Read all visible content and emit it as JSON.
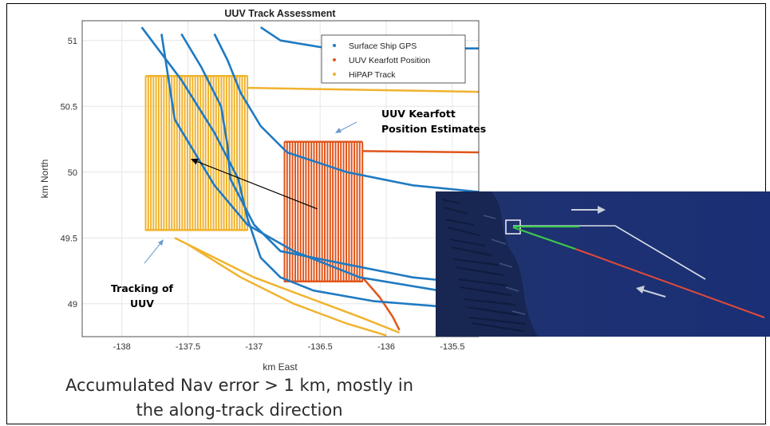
{
  "chart_data": {
    "type": "line",
    "title": "UUV Track Assessment",
    "xlabel": "km East",
    "ylabel": "km North",
    "xlim": [
      -138.3,
      -135.3
    ],
    "ylim": [
      48.75,
      51.15
    ],
    "xticks": [
      -138,
      -137.5,
      -137,
      -136.5,
      -136,
      -135.5
    ],
    "yticks": [
      49,
      49.5,
      50,
      50.5,
      51
    ],
    "grid": true,
    "legend_position": "top-right",
    "series": [
      {
        "name": "Surface Ship GPS",
        "color": "#1f7ac2",
        "paths": [
          [
            [
              -137.85,
              51.1
            ],
            [
              -137.55,
              50.7
            ],
            [
              -137.3,
              50.3
            ],
            [
              -137.12,
              49.95
            ],
            [
              -137.05,
              49.65
            ],
            [
              -136.95,
              49.35
            ],
            [
              -136.8,
              49.2
            ],
            [
              -136.55,
              49.1
            ],
            [
              -136.1,
              49.02
            ],
            [
              -135.6,
              48.98
            ],
            [
              -135.3,
              48.96
            ]
          ],
          [
            [
              -137.3,
              51.05
            ],
            [
              -137.2,
              50.85
            ],
            [
              -137.1,
              50.6
            ],
            [
              -136.95,
              50.35
            ],
            [
              -136.75,
              50.15
            ],
            [
              -136.3,
              50.0
            ],
            [
              -135.8,
              49.9
            ],
            [
              -135.3,
              49.85
            ]
          ],
          [
            [
              -137.55,
              51.05
            ],
            [
              -137.4,
              50.8
            ],
            [
              -137.25,
              50.5
            ],
            [
              -137.2,
              50.2
            ],
            [
              -137.18,
              49.95
            ],
            [
              -137.0,
              49.6
            ],
            [
              -136.8,
              49.4
            ],
            [
              -136.3,
              49.3
            ],
            [
              -135.8,
              49.2
            ],
            [
              -135.3,
              49.15
            ]
          ],
          [
            [
              -136.95,
              51.1
            ],
            [
              -136.8,
              51.0
            ],
            [
              -136.5,
              50.95
            ],
            [
              -136.0,
              50.94
            ],
            [
              -135.3,
              50.94
            ]
          ],
          [
            [
              -137.7,
              51.05
            ],
            [
              -137.6,
              50.4
            ],
            [
              -137.3,
              49.9
            ],
            [
              -137.05,
              49.6
            ],
            [
              -136.7,
              49.4
            ],
            [
              -136.2,
              49.2
            ],
            [
              -135.6,
              49.1
            ]
          ]
        ]
      },
      {
        "name": "UUV Kearfott Position",
        "color": "#e0561c",
        "block": {
          "x": [
            -136.77,
            -136.18
          ],
          "y": [
            49.17,
            50.23
          ],
          "lines": 30
        },
        "tails": [
          [
            [
              -136.18,
              50.16
            ],
            [
              -135.3,
              50.15
            ]
          ],
          [
            [
              -136.18,
              49.2
            ],
            [
              -136.05,
              49.05
            ],
            [
              -135.95,
              48.9
            ],
            [
              -135.9,
              48.8
            ]
          ]
        ]
      },
      {
        "name": "HiPAP Track",
        "color": "#f0b32e",
        "block": {
          "x": [
            -137.82,
            -137.05
          ],
          "y": [
            49.56,
            50.73
          ],
          "lines": 40
        },
        "tails": [
          [
            [
              -137.05,
              50.64
            ],
            [
              -135.3,
              50.61
            ]
          ],
          [
            [
              -137.6,
              49.5
            ],
            [
              -137.3,
              49.35
            ],
            [
              -137.0,
              49.2
            ],
            [
              -136.6,
              49.05
            ],
            [
              -136.2,
              48.9
            ],
            [
              -135.9,
              48.78
            ]
          ],
          [
            [
              -137.5,
              49.45
            ],
            [
              -137.1,
              49.2
            ],
            [
              -136.7,
              49.0
            ],
            [
              -136.3,
              48.85
            ],
            [
              -136.0,
              48.76
            ]
          ]
        ]
      }
    ],
    "annotations": {
      "kearfott_label_line1": "UUV Kearfott",
      "kearfott_label_line2": "Position Estimates",
      "tracking_label_line1": "Tracking of",
      "tracking_label_line2": "UUV",
      "offset_arrow": {
        "from": [
          -136.52,
          49.72
        ],
        "to": [
          -137.48,
          50.1
        ]
      }
    }
  },
  "caption": {
    "line1": "Accumulated Nav error > 1 km, mostly in",
    "line2": "the along-track direction"
  },
  "colors": {
    "seafloor_bg": "#1b2f6b",
    "grid": "#e6e6e6",
    "ship_gps": "#1f7ac2",
    "kearfott": "#e0561c",
    "hipap": "#f0b32e"
  }
}
